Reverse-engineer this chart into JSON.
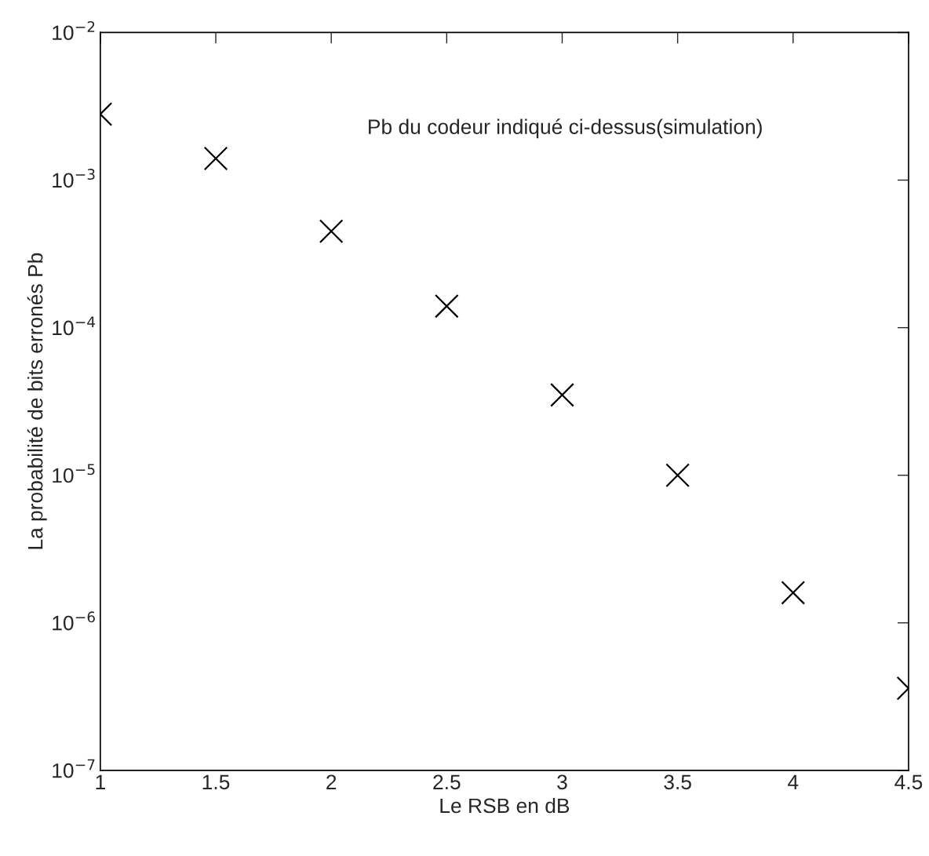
{
  "chart_data": {
    "type": "scatter",
    "xlabel": "Le RSB en dB",
    "ylabel": "La probabilité de bits erronés Pb",
    "annotations": [
      "Pb du codeur indiqué ci-dessus(simulation)"
    ],
    "x": [
      1,
      1.5,
      2,
      2.5,
      3,
      3.5,
      4,
      4.5
    ],
    "series": [
      {
        "color": "#000000",
        "values": [
          0.0028,
          0.0014,
          0.00045,
          0.00014,
          3.5e-05,
          1e-05,
          1.6e-06,
          3.6e-07
        ]
      }
    ],
    "marker": "cross",
    "log": "y",
    "grid": false,
    "legend": false,
    "xlim": [
      1,
      4.5
    ],
    "xticks": [
      1,
      1.5,
      2,
      2.5,
      3,
      3.5,
      4,
      4.5
    ],
    "ylim": [
      1e-07,
      0.01
    ],
    "yticks": [
      {
        "value": 1e-07,
        "label": "10$^{−7}$"
      },
      {
        "value": 1e-06,
        "label": "10$^{−6}$"
      },
      {
        "value": 1e-05,
        "label": "10$^{−5}$"
      },
      {
        "value": 0.0001,
        "label": "10$^{−4}$"
      },
      {
        "value": 0.001,
        "label": "10$^{−3}$"
      },
      {
        "value": 0.01,
        "label": "10$^{−2}$"
      }
    ]
  }
}
